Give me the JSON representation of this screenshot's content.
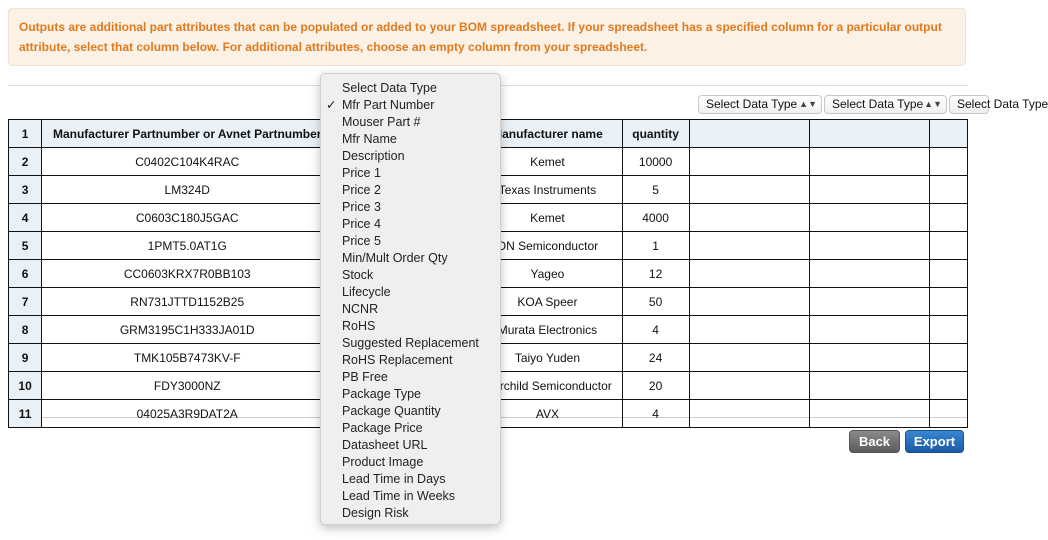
{
  "alert": {
    "text": "Outputs are additional part attributes that can be populated or added to your BOM spreadsheet. If your spreadsheet has a specified column for a particular output attribute, select that column below. For additional attributes, choose an empty column from your spreadsheet."
  },
  "column_selects": [
    "Select Data Type",
    "Select Data Type",
    "Select Data Type"
  ],
  "table": {
    "headers": [
      "1",
      "Manufacturer Partnumber or Avnet Partnumber",
      "",
      "Manufacturer name",
      "quantity",
      "",
      "",
      ""
    ],
    "rows": [
      {
        "n": "2",
        "part": "C0402C104K4RAC",
        "mfr": "Kemet",
        "qty": "10000"
      },
      {
        "n": "3",
        "part": "LM324D",
        "mfr": "Texas Instruments",
        "qty": "5"
      },
      {
        "n": "4",
        "part": "C0603C180J5GAC",
        "mfr": "Kemet",
        "qty": "4000"
      },
      {
        "n": "5",
        "part": "1PMT5.0AT1G",
        "mfr": "ON Semiconductor",
        "qty": "1"
      },
      {
        "n": "6",
        "part": "CC0603KRX7R0BB103",
        "mfr": "Yageo",
        "qty": "12"
      },
      {
        "n": "7",
        "part": "RN731JTTD1152B25",
        "mfr": "KOA Speer",
        "qty": "50"
      },
      {
        "n": "8",
        "part": "GRM3195C1H333JA01D",
        "mfr": "Murata Electronics",
        "qty": "4"
      },
      {
        "n": "9",
        "part": "TMK105B7473KV-F",
        "mfr": "Taiyo Yuden",
        "qty": "24"
      },
      {
        "n": "10",
        "part": "FDY3000NZ",
        "mfr": "Fairchild Semiconductor",
        "qty": "20"
      },
      {
        "n": "11",
        "part": "04025A3R9DAT2A",
        "mfr": "AVX",
        "qty": "4"
      }
    ]
  },
  "dropdown": {
    "selected": "Mfr Part Number",
    "options": [
      "Select Data Type",
      "Mfr Part Number",
      "Mouser Part #",
      "Mfr Name",
      "Description",
      "Price 1",
      "Price 2",
      "Price 3",
      "Price 4",
      "Price 5",
      "Min/Mult Order Qty",
      "Stock",
      "Lifecycle",
      "NCNR",
      "RoHS",
      "Suggested Replacement",
      "RoHS Replacement",
      "PB Free",
      "Package Type",
      "Package Quantity",
      "Package Price",
      "Datasheet URL",
      "Product Image",
      "Lead Time in Days",
      "Lead Time in Weeks",
      "Design Risk"
    ]
  },
  "buttons": {
    "back": "Back",
    "export": "Export"
  },
  "colors": {
    "alert_text": "#e07a1f",
    "alert_bg": "#fcf1e5",
    "export": "#1a5aa6",
    "back": "#5c5c5c"
  }
}
